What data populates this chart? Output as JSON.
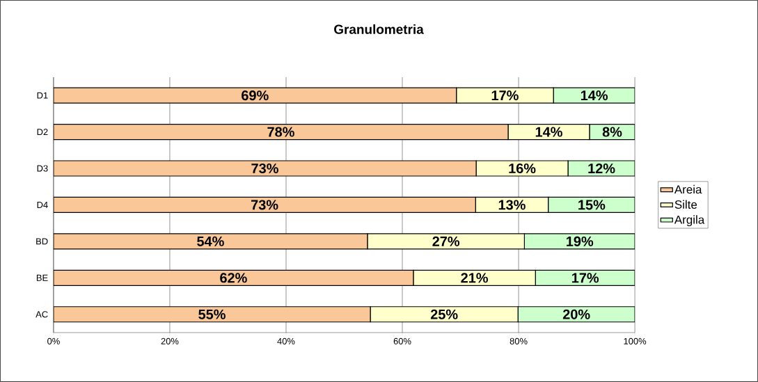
{
  "chart_data": {
    "type": "bar",
    "title": "Granulometria",
    "orientation": "horizontal",
    "stacked": true,
    "categories": [
      "D1",
      "D2",
      "D3",
      "D4",
      "BD",
      "BE",
      "AC"
    ],
    "series": [
      {
        "name": "Areia",
        "color": "#fac898",
        "values": [
          69.3,
          78.2,
          72.7,
          72.6,
          54.0,
          61.9,
          54.5
        ],
        "value_labels": [
          "69%",
          "78%",
          "73%",
          "73%",
          "54%",
          "62%",
          "55%"
        ]
      },
      {
        "name": "Silte",
        "color": "#ffffcc",
        "values": [
          16.7,
          14.0,
          15.8,
          12.5,
          27.0,
          21.0,
          25.4
        ],
        "value_labels": [
          "17%",
          "14%",
          "16%",
          "13%",
          "27%",
          "21%",
          "25%"
        ]
      },
      {
        "name": "Argila",
        "color": "#ccffcc",
        "values": [
          14.0,
          7.8,
          11.5,
          14.9,
          19.0,
          17.1,
          20.1
        ],
        "value_labels": [
          "14%",
          "8%",
          "12%",
          "15%",
          "19%",
          "17%",
          "20%"
        ]
      }
    ],
    "xlim": [
      0,
      100
    ],
    "xticks": [
      {
        "value": 0,
        "label": "0%"
      },
      {
        "value": 20,
        "label": "20%"
      },
      {
        "value": 40,
        "label": "40%"
      },
      {
        "value": 60,
        "label": "60%"
      },
      {
        "value": 80,
        "label": "80%"
      },
      {
        "value": 100,
        "label": "100%"
      }
    ],
    "grid": "x",
    "legend": "right"
  }
}
